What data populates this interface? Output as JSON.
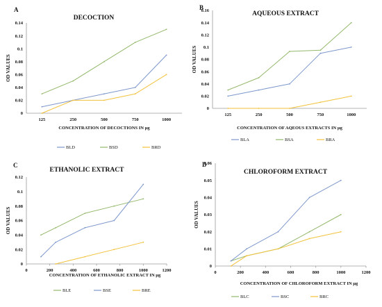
{
  "colors": {
    "blue": "#7d97cc",
    "green": "#93b86a",
    "orange": "#f2c13a"
  },
  "chart_data": [
    {
      "panel": "A",
      "type": "line",
      "title": "DECOCTION",
      "xlabel": "CONCENTRATION OF DECOCTIONS IN µg",
      "ylabel": "OD VALUES",
      "x_axis_type": "category",
      "categories": [
        "125",
        "250",
        "500",
        "750",
        "1000"
      ],
      "ylim": [
        0,
        0.14
      ],
      "yticks": [
        "0",
        "0.02",
        "0.04",
        "0.06",
        "0.08",
        "0.1",
        "0.12",
        "0.14"
      ],
      "grid": false,
      "legend_position": "bottom",
      "series": [
        {
          "name": "BLD",
          "color": "blue",
          "values": [
            0.01,
            0.02,
            0.03,
            0.04,
            0.09
          ]
        },
        {
          "name": "BSD",
          "color": "green",
          "values": [
            0.03,
            0.05,
            0.08,
            0.11,
            0.13
          ]
        },
        {
          "name": "BRD",
          "color": "orange",
          "values": [
            0.0,
            0.02,
            0.02,
            0.03,
            0.06
          ]
        }
      ]
    },
    {
      "panel": "B",
      "type": "line",
      "title": "AQUEOUS EXTRACT",
      "xlabel": "CONCENTRATION OF AQEOUS EXTRACTS IN µg",
      "ylabel": "OD VALUES",
      "x_axis_type": "category",
      "categories": [
        "125",
        "250",
        "500",
        "750",
        "1000"
      ],
      "ylim": [
        0,
        0.16
      ],
      "yticks": [
        "0",
        "0.02",
        "0.04",
        "0.06",
        "0.08",
        "0.1",
        "0.12",
        "0.14",
        "0.16"
      ],
      "grid": false,
      "legend_position": "bottom",
      "series": [
        {
          "name": "BLA",
          "color": "blue",
          "values": [
            0.02,
            0.03,
            0.04,
            0.09,
            0.1
          ]
        },
        {
          "name": "BSA",
          "color": "green",
          "values": [
            0.03,
            0.05,
            0.093,
            0.095,
            0.14
          ]
        },
        {
          "name": "BRA",
          "color": "orange",
          "values": [
            0.0,
            0.0,
            0.0,
            0.01,
            0.02
          ]
        }
      ]
    },
    {
      "panel": "C",
      "type": "scatter",
      "title": "ETHANOLIC EXTRACT",
      "xlabel": "CONCENTRATION OF ETHANOLIC EXTRACT IN µg",
      "ylabel": "OD VALUES",
      "x_axis_type": "numeric",
      "xlim": [
        0,
        1200
      ],
      "xticks": [
        "0",
        "200",
        "400",
        "600",
        "800",
        "1000",
        "1200"
      ],
      "ylim": [
        0,
        0.12
      ],
      "yticks": [
        "0",
        "0.02",
        "0.04",
        "0.06",
        "0.08",
        "0.1",
        "0.12"
      ],
      "grid": false,
      "legend_position": "bottom",
      "series": [
        {
          "name": "BLE",
          "color": "green",
          "x": [
            125,
            250,
            500,
            750,
            1000
          ],
          "y": [
            0.04,
            0.05,
            0.07,
            0.08,
            0.09
          ]
        },
        {
          "name": "BSE",
          "color": "blue",
          "x": [
            125,
            250,
            500,
            750,
            1000
          ],
          "y": [
            0.01,
            0.03,
            0.05,
            0.06,
            0.11
          ]
        },
        {
          "name": "BRE",
          "color": "orange",
          "x": [
            250,
            500,
            750,
            1000
          ],
          "y": [
            0.0,
            0.01,
            0.02,
            0.03
          ]
        }
      ]
    },
    {
      "panel": "D",
      "type": "scatter",
      "title": "CHLOROFORM EXTRACT",
      "xlabel": "CONCENTRATION OF CHLOROFORM EXTRACT IN µg",
      "ylabel": "OD VALUES",
      "x_axis_type": "numeric",
      "xlim": [
        0,
        1200
      ],
      "xticks": [
        "0",
        "200",
        "400",
        "600",
        "800",
        "1000",
        "1200"
      ],
      "ylim": [
        0,
        0.06
      ],
      "yticks": [
        "0",
        "0.01",
        "0.02",
        "0.03",
        "0.04",
        "0.05",
        "0.06"
      ],
      "grid": false,
      "legend_position": "bottom",
      "series": [
        {
          "name": "BLC",
          "color": "green",
          "x": [
            125,
            250,
            500,
            750,
            1000
          ],
          "y": [
            0.003,
            0.006,
            0.01,
            0.02,
            0.03
          ]
        },
        {
          "name": "BSC",
          "color": "blue",
          "x": [
            125,
            250,
            500,
            750,
            1000
          ],
          "y": [
            0.003,
            0.01,
            0.02,
            0.04,
            0.05
          ]
        },
        {
          "name": "BRC",
          "color": "orange",
          "x": [
            125,
            250,
            500,
            750,
            1000
          ],
          "y": [
            0.0,
            0.006,
            0.01,
            0.016,
            0.02
          ]
        }
      ]
    }
  ]
}
